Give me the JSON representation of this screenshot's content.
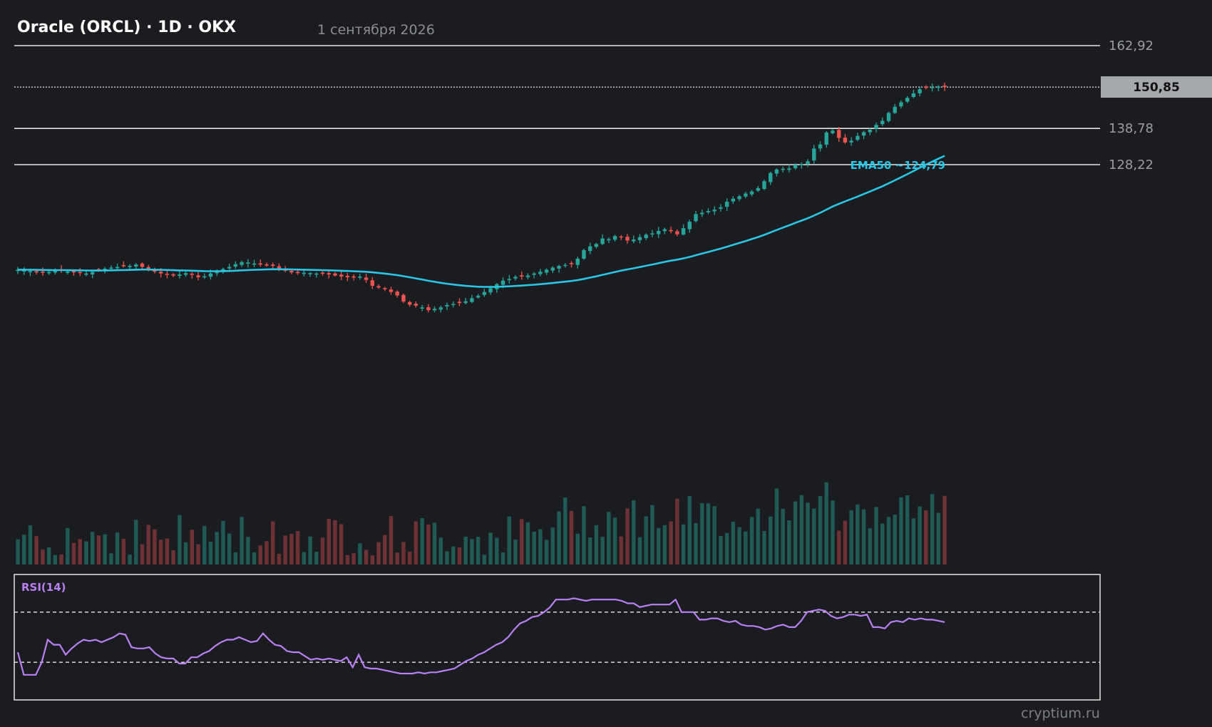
{
  "header": {
    "title": "Oracle (ORCL) · 1D · OKX",
    "date": "1 сентября 2026"
  },
  "watermark": "cryptium.ru",
  "colors": {
    "background": "#1b1c20",
    "up": "#26a69a",
    "down": "#ef5350",
    "ema": "#29c6e6",
    "rsi": "#b980f6",
    "level_line": "#e6e6e6",
    "price_tag_bg": "#a5a8ad"
  },
  "chart_data": [
    {
      "type": "candlestick",
      "symbol": "ORCL",
      "interval": "1D",
      "exchange": "OKX",
      "y_scale": "linear",
      "levels": [
        {
          "value": 162.92,
          "label": "162,92"
        },
        {
          "value": 138.78,
          "label": "138,78"
        },
        {
          "value": 128.22,
          "label": "128,22"
        }
      ],
      "current_price": {
        "value": 150.85,
        "label": "150,85"
      },
      "ema": {
        "label": "EMA50 ~124,79",
        "value": 124.79
      },
      "candles_count": 150,
      "candles_note": "approximate closes read from chart",
      "closes": [
        97.6,
        97.4,
        97.2,
        96.8,
        96.7,
        96.9,
        97.2,
        97.4,
        97.0,
        96.8,
        96.6,
        96.5,
        96.9,
        97.4,
        97.9,
        98.2,
        98.4,
        98.6,
        98.7,
        99.1,
        98.4,
        97.6,
        97.0,
        96.5,
        96.1,
        95.9,
        96.2,
        96.6,
        96.1,
        95.4,
        95.7,
        96.5,
        97.1,
        97.8,
        98.4,
        99.2,
        99.8,
        99.7,
        99.4,
        99.1,
        98.8,
        98.7,
        98.0,
        97.3,
        96.8,
        96.6,
        96.7,
        96.6,
        96.5,
        96.4,
        96.2,
        95.9,
        95.6,
        95.4,
        95.3,
        95.6,
        94.6,
        92.9,
        92.4,
        91.9,
        91.1,
        90.1,
        88.3,
        87.4,
        87.1,
        86.6,
        85.8,
        86.2,
        86.6,
        87.3,
        87.6,
        87.9,
        88.4,
        89.3,
        90.0,
        91.1,
        92.2,
        93.4,
        94.4,
        94.9,
        95.5,
        95.6,
        95.9,
        96.5,
        97.0,
        97.6,
        98.2,
        98.7,
        99.0,
        99.2,
        100.8,
        103.3,
        104.4,
        105.1,
        106.7,
        106.5,
        107.4,
        107.0,
        106.1,
        106.4,
        107.1,
        107.8,
        108.2,
        108.9,
        109.4,
        108.8,
        107.9,
        109.7,
        111.6,
        113.8,
        114.2,
        114.7,
        115.1,
        115.8,
        117.4,
        118.3,
        119.0,
        119.8,
        120.4,
        121.4,
        123.4,
        125.8,
        126.8,
        127.0,
        127.1,
        128.2,
        128.4,
        129.2,
        132.9,
        134.1,
        137.6,
        138.1,
        136.0,
        134.7,
        135.2,
        136.6,
        137.7,
        138.4,
        139.8,
        141.0,
        143.3,
        145.1,
        146.4,
        147.7,
        149.0,
        150.2,
        150.6,
        150.85,
        151.0,
        150.85
      ]
    },
    {
      "type": "bar",
      "name": "Volume",
      "note": "relative volume histogram under candles, no axis values shown"
    },
    {
      "type": "line",
      "title": "RSI(14)",
      "ylim": [
        0,
        100
      ],
      "reference_lines": [
        70,
        30
      ],
      "values": [
        38,
        20,
        20,
        20,
        30,
        48,
        44,
        44,
        36,
        41,
        45,
        48,
        47,
        48,
        46,
        48,
        50,
        53,
        52,
        42,
        41,
        41,
        42,
        37,
        34,
        33,
        33,
        29,
        29,
        34,
        34,
        37,
        39,
        43,
        46,
        48,
        48,
        50,
        48,
        46,
        47,
        53,
        48,
        44,
        43,
        39,
        38,
        38,
        35,
        32,
        33,
        32,
        33,
        32,
        31,
        34,
        26,
        36,
        26,
        25,
        25,
        24,
        23,
        22,
        21,
        21,
        21,
        22,
        21,
        22,
        22,
        23,
        24,
        25,
        28,
        31,
        33,
        36,
        38,
        41,
        44,
        46,
        50,
        56,
        61,
        63,
        66,
        67,
        70,
        74,
        80,
        80,
        80,
        81,
        80,
        79,
        80,
        80,
        80,
        80,
        80,
        79,
        77,
        77,
        74,
        75,
        76,
        76,
        76,
        76,
        80,
        70,
        70,
        70,
        64,
        64,
        65,
        65,
        63,
        62,
        63,
        60,
        59,
        59,
        58,
        56,
        57,
        59,
        60,
        58,
        58,
        63,
        70,
        71,
        72,
        71,
        67,
        65,
        66,
        68,
        68,
        67,
        68,
        58,
        58,
        57,
        62,
        63,
        62,
        65,
        64,
        65,
        64,
        64,
        63,
        62
      ]
    }
  ]
}
